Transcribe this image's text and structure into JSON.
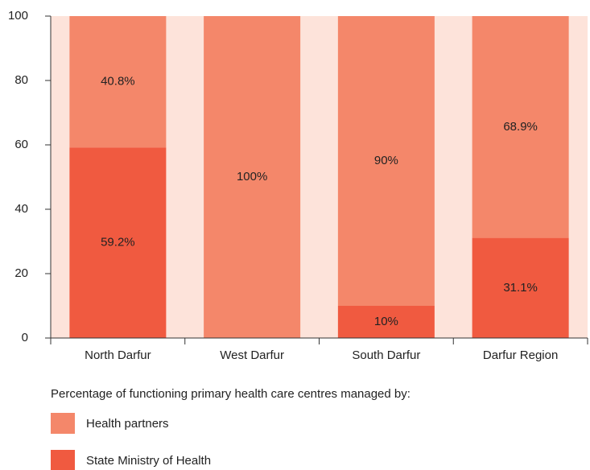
{
  "chart_data": {
    "type": "stacked_bar",
    "categories": [
      "North Darfur",
      "West Darfur",
      "South Darfur",
      "Darfur Region"
    ],
    "series": [
      {
        "name": "State Ministry of Health",
        "color": "#f05a40",
        "values": [
          59.2,
          0,
          10,
          31.1
        ],
        "value_labels": [
          "59.2%",
          null,
          "10%",
          "31.1%"
        ]
      },
      {
        "name": "Health partners",
        "color": "#f4876a",
        "values": [
          40.8,
          100,
          90,
          68.9
        ],
        "value_labels": [
          "40.8%",
          "100%",
          "90%",
          "68.9%"
        ]
      }
    ],
    "legend_title": "Percentage of functioning primary health care centres managed by:",
    "ylim": [
      0,
      100
    ],
    "yticks": [
      0,
      20,
      40,
      60,
      80,
      100
    ],
    "background": "#fde3da"
  }
}
